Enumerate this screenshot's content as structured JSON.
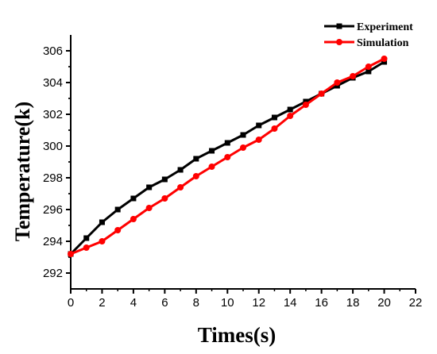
{
  "chart_data": {
    "type": "line",
    "xlabel": "Times(s)",
    "ylabel": "Temperature(k)",
    "xlim": [
      0,
      22
    ],
    "ylim": [
      291,
      307
    ],
    "xticks": [
      0,
      2,
      4,
      6,
      8,
      10,
      12,
      14,
      16,
      18,
      20,
      22
    ],
    "yticks": [
      292,
      294,
      296,
      298,
      300,
      302,
      304,
      306
    ],
    "x": [
      0,
      1,
      2,
      3,
      4,
      5,
      6,
      7,
      8,
      9,
      10,
      11,
      12,
      13,
      14,
      15,
      16,
      17,
      18,
      19,
      20
    ],
    "series": [
      {
        "name": "Experiment",
        "color": "#000000",
        "marker": "square",
        "values": [
          293.2,
          294.2,
          295.2,
          296.0,
          296.7,
          297.4,
          297.9,
          298.5,
          299.2,
          299.7,
          300.2,
          300.7,
          301.3,
          301.8,
          302.3,
          302.8,
          303.3,
          303.8,
          304.3,
          304.7,
          305.3
        ]
      },
      {
        "name": "Simulation",
        "color": "#ff0000",
        "marker": "circle",
        "values": [
          293.2,
          293.6,
          294.0,
          294.7,
          295.4,
          296.1,
          296.7,
          297.4,
          298.1,
          298.7,
          299.3,
          299.9,
          300.4,
          301.1,
          301.9,
          302.6,
          303.3,
          304.0,
          304.4,
          305.0,
          305.5
        ]
      }
    ],
    "legend": "top-right",
    "grid": false
  }
}
